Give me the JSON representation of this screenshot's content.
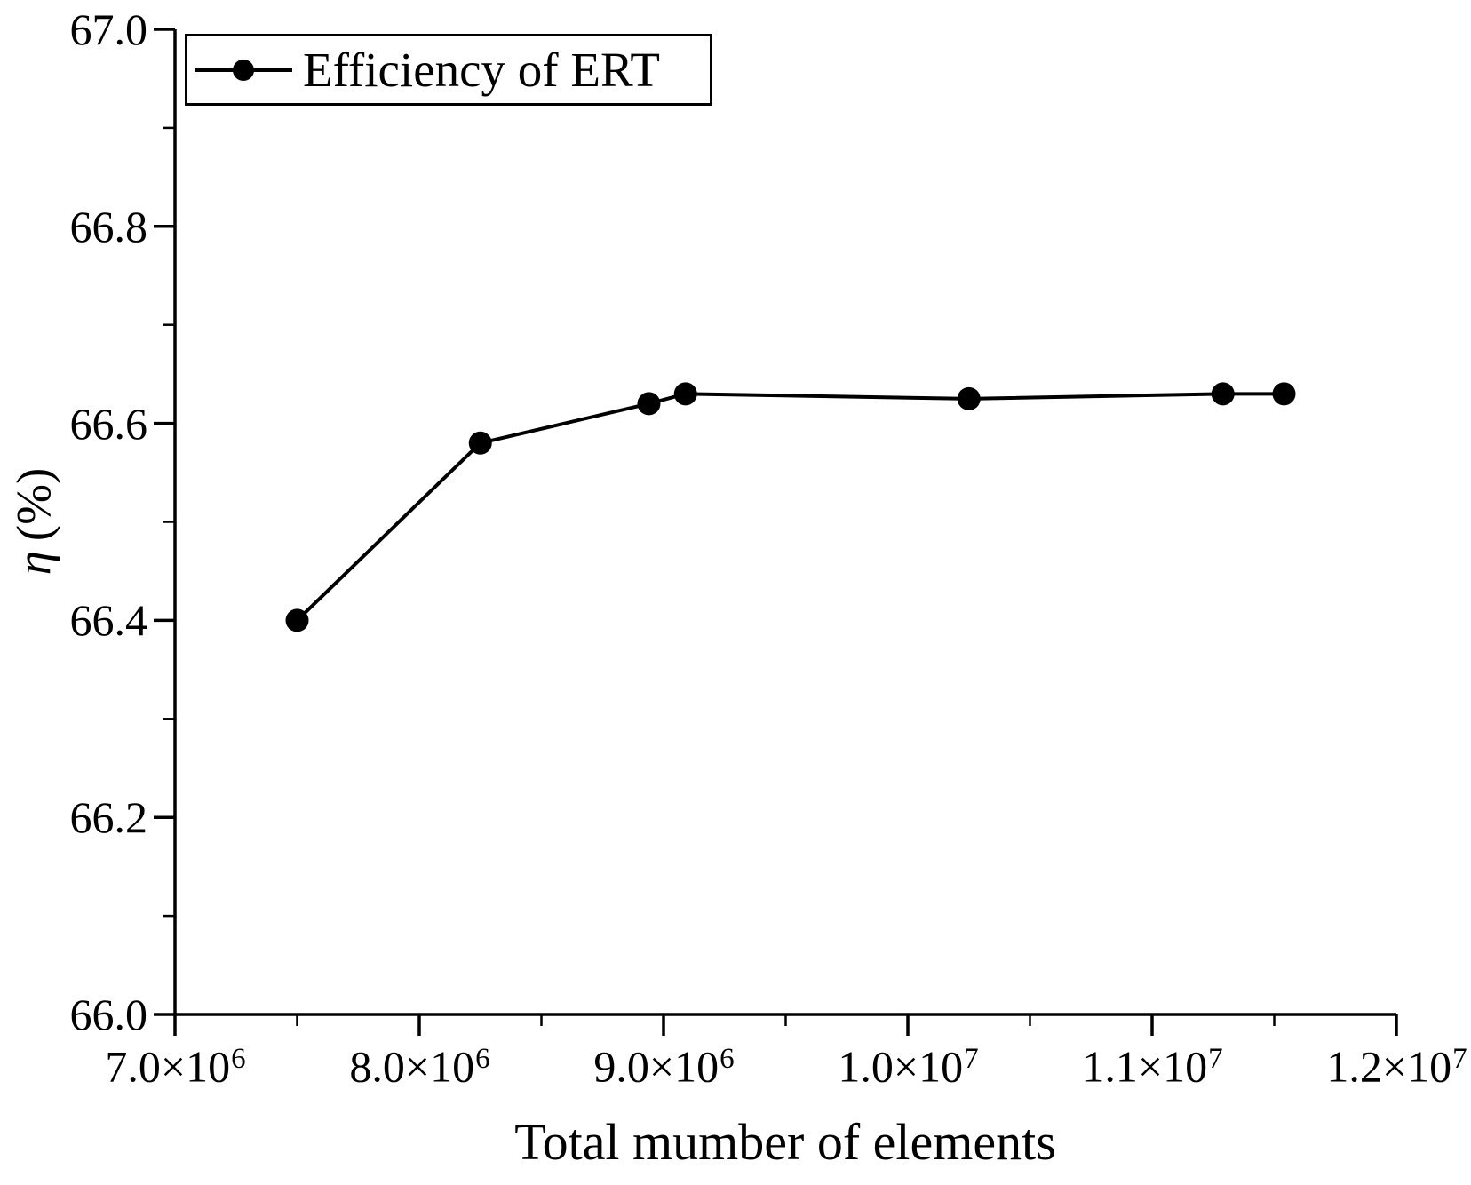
{
  "chart_data": {
    "type": "line",
    "title": "",
    "xlabel": "Total mumber of elements",
    "ylabel": "η (%)",
    "ylabel_symbol": "η",
    "ylabel_rest": "(%)",
    "legend_label": "Efficiency of ERT",
    "legend_position": "top-left",
    "grid": false,
    "line_color": "#000000",
    "text_color": "#000000",
    "background_color": "#ffffff",
    "marker": "filled-circle",
    "x": [
      7500000,
      8250000,
      8940000,
      9090000,
      10250000,
      11290000,
      11540000
    ],
    "series": [
      {
        "name": "Efficiency of ERT",
        "values": [
          66.4,
          66.58,
          66.62,
          66.63,
          66.625,
          66.63,
          66.63
        ]
      }
    ],
    "xlim": [
      7000000,
      12000000
    ],
    "ylim": [
      66.0,
      67.0
    ],
    "x_tick_labels": [
      {
        "value": 7000000,
        "mantissa": "7.0×10",
        "exp": "6"
      },
      {
        "value": 8000000,
        "mantissa": "8.0×10",
        "exp": "6"
      },
      {
        "value": 9000000,
        "mantissa": "9.0×10",
        "exp": "6"
      },
      {
        "value": 10000000,
        "mantissa": "1.0×10",
        "exp": "7"
      },
      {
        "value": 11000000,
        "mantissa": "1.1×10",
        "exp": "7"
      },
      {
        "value": 12000000,
        "mantissa": "1.2×10",
        "exp": "7"
      }
    ],
    "x_minor_ticks": [
      7500000,
      8500000,
      9500000,
      10500000,
      11500000
    ],
    "y_tick_labels": [
      {
        "value": 66.0,
        "label": "66.0"
      },
      {
        "value": 66.2,
        "label": "66.2"
      },
      {
        "value": 66.4,
        "label": "66.4"
      },
      {
        "value": 66.6,
        "label": "66.6"
      },
      {
        "value": 66.8,
        "label": "66.8"
      },
      {
        "value": 67.0,
        "label": "67.0"
      }
    ],
    "y_minor_ticks": [
      66.1,
      66.3,
      66.5,
      66.7,
      66.9
    ]
  }
}
